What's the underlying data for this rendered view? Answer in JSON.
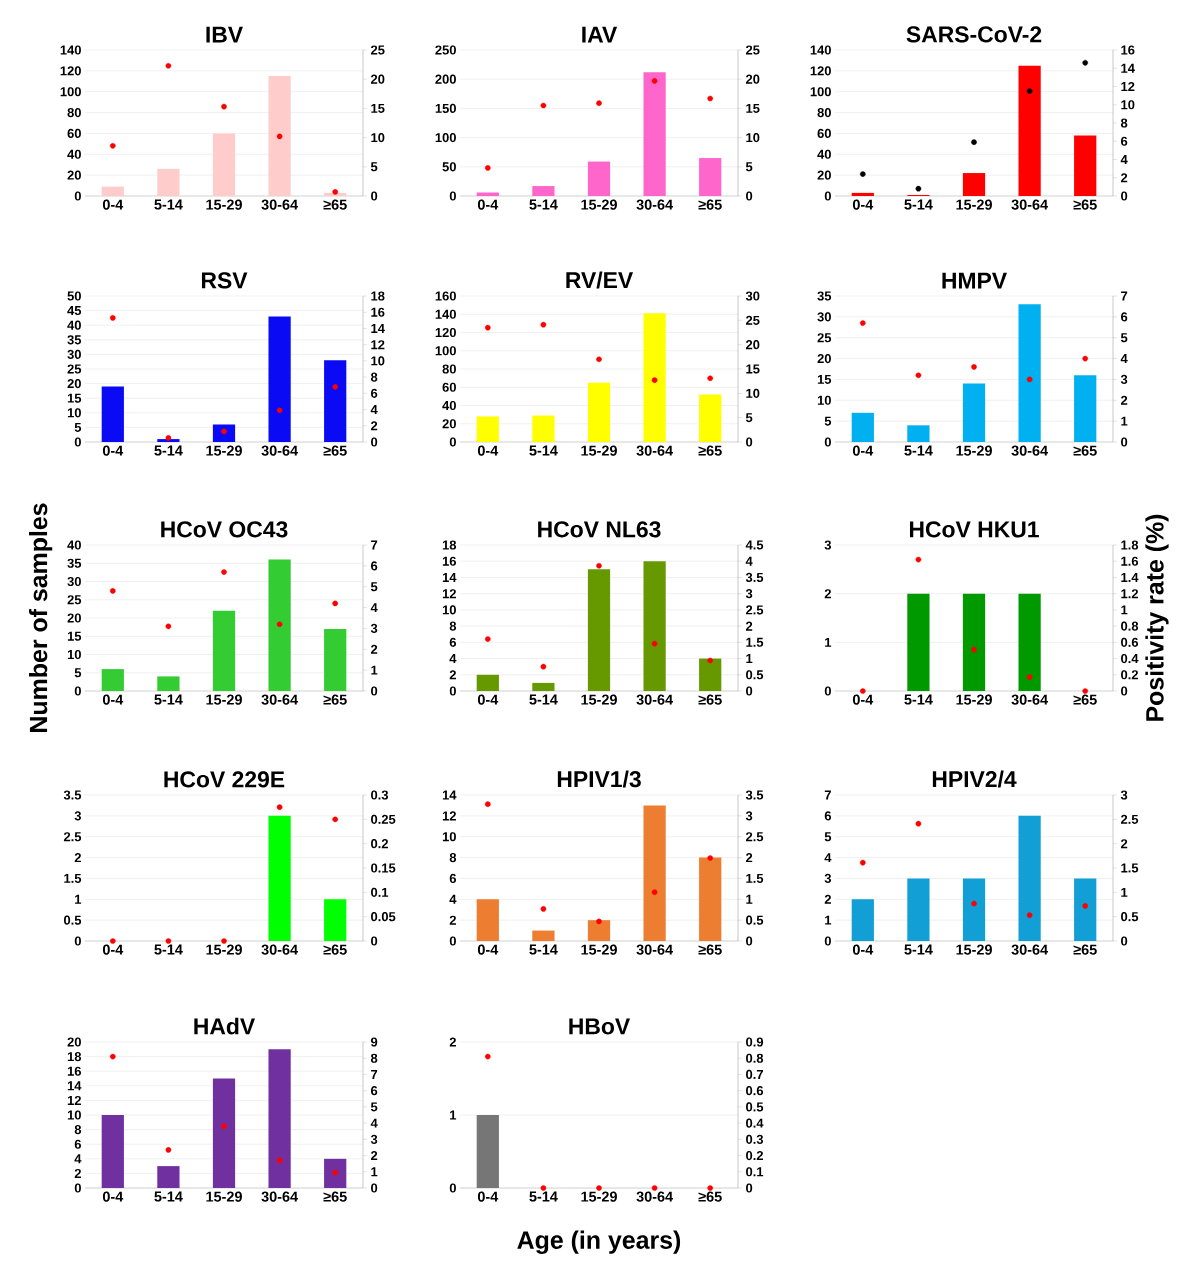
{
  "chart_data": [
    {
      "type": "bar",
      "title": "IBV",
      "categories": [
        "0-4",
        "5-14",
        "15-29",
        "30-64",
        "≥65"
      ],
      "ylim": [
        0,
        140
      ],
      "yticks": [
        0,
        20,
        40,
        60,
        80,
        100,
        120,
        140
      ],
      "y2lim": [
        0,
        25
      ],
      "y2ticks": [
        0,
        5,
        10,
        15,
        20,
        25
      ],
      "grid": "y",
      "series": [
        {
          "color": "#ffcccc",
          "values": [
            9,
            26,
            60,
            115,
            3
          ]
        },
        {
          "type": "scatter",
          "axis": "y2",
          "color": "#ff0000",
          "marker": "circle",
          "values": [
            8.6,
            22.3,
            15.3,
            10.2,
            0.7
          ]
        }
      ]
    },
    {
      "type": "bar",
      "title": "IAV",
      "categories": [
        "0-4",
        "5-14",
        "15-29",
        "30-64",
        "≥65"
      ],
      "ylim": [
        0,
        250
      ],
      "yticks": [
        0,
        50,
        100,
        150,
        200,
        250
      ],
      "y2lim": [
        0,
        25
      ],
      "y2ticks": [
        0,
        5,
        10,
        15,
        20,
        25
      ],
      "grid": "y",
      "series": [
        {
          "color": "#ff66cc",
          "values": [
            6,
            17,
            59,
            212,
            65
          ]
        },
        {
          "type": "scatter",
          "axis": "y2",
          "color": "#ff0000",
          "marker": "circle",
          "values": [
            4.8,
            15.5,
            15.9,
            19.7,
            16.7
          ]
        }
      ]
    },
    {
      "type": "bar",
      "title": "SARS-CoV-2",
      "categories": [
        "0-4",
        "5-14",
        "15-29",
        "30-64",
        "≥65"
      ],
      "ylim": [
        0,
        140
      ],
      "yticks": [
        0,
        20,
        40,
        60,
        80,
        100,
        120,
        140
      ],
      "y2lim": [
        0,
        16
      ],
      "y2ticks": [
        0,
        2,
        4,
        6,
        8,
        10,
        12,
        14,
        16
      ],
      "grid": "y",
      "series": [
        {
          "color": "#ff0000",
          "values": [
            3,
            1,
            22,
            125,
            58
          ]
        },
        {
          "type": "scatter",
          "axis": "y2",
          "color": "#000000",
          "marker": "circle",
          "values": [
            2.4,
            0.8,
            5.9,
            11.5,
            14.6
          ]
        }
      ]
    },
    {
      "type": "bar",
      "title": "RSV",
      "categories": [
        "0-4",
        "5-14",
        "15-29",
        "30-64",
        "≥65"
      ],
      "ylim": [
        0,
        50
      ],
      "yticks": [
        0,
        5,
        10,
        15,
        20,
        25,
        30,
        35,
        40,
        45,
        50
      ],
      "y2lim": [
        0,
        18
      ],
      "y2ticks": [
        0,
        2,
        4,
        6,
        8,
        10,
        12,
        14,
        16,
        18
      ],
      "grid": "y",
      "series": [
        {
          "color": "#0a0af5",
          "values": [
            19,
            1,
            6,
            43,
            28
          ]
        },
        {
          "type": "scatter",
          "axis": "y2",
          "color": "#ff0000",
          "marker": "circle",
          "values": [
            15.3,
            0.5,
            1.3,
            3.9,
            6.8
          ]
        }
      ]
    },
    {
      "type": "bar",
      "title": "RV/EV",
      "categories": [
        "0-4",
        "5-14",
        "15-29",
        "30-64",
        "≥65"
      ],
      "ylim": [
        0,
        160
      ],
      "yticks": [
        0,
        20,
        40,
        60,
        80,
        100,
        120,
        140,
        160
      ],
      "y2lim": [
        0,
        30
      ],
      "y2ticks": [
        0,
        5,
        10,
        15,
        20,
        25,
        30
      ],
      "grid": "y",
      "series": [
        {
          "color": "#ffff00",
          "values": [
            28,
            29,
            65,
            141,
            52
          ]
        },
        {
          "type": "scatter",
          "axis": "y2",
          "color": "#ff0000",
          "marker": "circle",
          "values": [
            23.5,
            24.1,
            17,
            12.7,
            13.1
          ]
        }
      ]
    },
    {
      "type": "bar",
      "title": "HMPV",
      "categories": [
        "0-4",
        "5-14",
        "15-29",
        "30-64",
        "≥65"
      ],
      "ylim": [
        0,
        35
      ],
      "yticks": [
        0,
        5,
        10,
        15,
        20,
        25,
        30,
        35
      ],
      "y2lim": [
        0,
        7
      ],
      "y2ticks": [
        0,
        1,
        2,
        3,
        4,
        5,
        6,
        7
      ],
      "grid": "y",
      "series": [
        {
          "color": "#00b0f0",
          "values": [
            7,
            4,
            14,
            33,
            16
          ]
        },
        {
          "type": "scatter",
          "axis": "y2",
          "color": "#ff0000",
          "marker": "circle",
          "values": [
            5.7,
            3.2,
            3.6,
            3.0,
            4.0
          ]
        }
      ]
    },
    {
      "type": "bar",
      "title": "HCoV OC43",
      "ylabel": "Number of samples",
      "categories": [
        "0-4",
        "5-14",
        "15-29",
        "30-64",
        "≥65"
      ],
      "ylim": [
        0,
        40
      ],
      "yticks": [
        0,
        5,
        10,
        15,
        20,
        25,
        30,
        35,
        40
      ],
      "y2lim": [
        0,
        7
      ],
      "y2ticks": [
        0,
        1,
        2,
        3,
        4,
        5,
        6,
        7
      ],
      "grid": "y",
      "series": [
        {
          "color": "#33cc33",
          "values": [
            6,
            4,
            22,
            36,
            17
          ]
        },
        {
          "type": "scatter",
          "axis": "y2",
          "color": "#ff0000",
          "marker": "circle",
          "values": [
            4.8,
            3.1,
            5.7,
            3.2,
            4.2
          ]
        }
      ]
    },
    {
      "type": "bar",
      "title": "HCoV NL63",
      "categories": [
        "0-4",
        "5-14",
        "15-29",
        "30-64",
        "≥65"
      ],
      "ylim": [
        0,
        18
      ],
      "yticks": [
        0,
        2,
        4,
        6,
        8,
        10,
        12,
        14,
        16,
        18
      ],
      "y2lim": [
        0,
        4.5
      ],
      "y2ticks": [
        0,
        0.5,
        1,
        1.5,
        2,
        2.5,
        3,
        3.5,
        4,
        4.5
      ],
      "grid": "y",
      "series": [
        {
          "color": "#669900",
          "values": [
            2,
            1,
            15,
            16,
            4
          ]
        },
        {
          "type": "scatter",
          "axis": "y2",
          "color": "#ff0000",
          "marker": "circle",
          "values": [
            1.6,
            0.75,
            3.86,
            1.46,
            0.94
          ]
        }
      ]
    },
    {
      "type": "bar",
      "title": "HCoV HKU1",
      "y2label": "Positivity rate (%)",
      "categories": [
        "0-4",
        "5-14",
        "15-29",
        "30-64",
        "≥65"
      ],
      "ylim": [
        0,
        3
      ],
      "yticks": [
        0,
        1,
        2,
        3
      ],
      "y2lim": [
        0,
        1.8
      ],
      "y2ticks": [
        0,
        0.2,
        0.4,
        0.6,
        0.8,
        1,
        1.2,
        1.4,
        1.6,
        1.8
      ],
      "grid": "y",
      "series": [
        {
          "color": "#009900",
          "values": [
            0,
            2,
            2,
            2,
            0
          ]
        },
        {
          "type": "scatter",
          "axis": "y2",
          "color": "#ff0000",
          "marker": "circle",
          "values": [
            0,
            1.62,
            0.51,
            0.17,
            0
          ]
        }
      ]
    },
    {
      "type": "bar",
      "title": "HCoV 229E",
      "categories": [
        "0-4",
        "5-14",
        "15-29",
        "30-64",
        "≥65"
      ],
      "ylim": [
        0,
        3.5
      ],
      "yticks": [
        0,
        0.5,
        1,
        1.5,
        2,
        2.5,
        3,
        3.5
      ],
      "y2lim": [
        0,
        0.3
      ],
      "y2ticks": [
        0,
        0.05,
        0.1,
        0.15,
        0.2,
        0.25,
        0.3
      ],
      "grid": "y",
      "series": [
        {
          "color": "#00ff00",
          "values": [
            0,
            0,
            0,
            3,
            1
          ]
        },
        {
          "type": "scatter",
          "axis": "y2",
          "color": "#ff0000",
          "marker": "circle",
          "values": [
            0,
            0,
            0,
            0.275,
            0.25
          ]
        }
      ]
    },
    {
      "type": "bar",
      "title": "HPIV1/3",
      "categories": [
        "0-4",
        "5-14",
        "15-29",
        "30-64",
        "≥65"
      ],
      "ylim": [
        0,
        14
      ],
      "yticks": [
        0,
        2,
        4,
        6,
        8,
        10,
        12,
        14
      ],
      "y2lim": [
        0,
        3.5
      ],
      "y2ticks": [
        0,
        0.5,
        1,
        1.5,
        2,
        2.5,
        3,
        3.5
      ],
      "grid": "y",
      "series": [
        {
          "color": "#ed7d31",
          "values": [
            4,
            1,
            2,
            13,
            8
          ]
        },
        {
          "type": "scatter",
          "axis": "y2",
          "color": "#ff0000",
          "marker": "circle",
          "values": [
            3.28,
            0.77,
            0.47,
            1.17,
            1.99
          ]
        }
      ]
    },
    {
      "type": "bar",
      "title": "HPIV2/4",
      "categories": [
        "0-4",
        "5-14",
        "15-29",
        "30-64",
        "≥65"
      ],
      "ylim": [
        0,
        7
      ],
      "yticks": [
        0,
        1,
        2,
        3,
        4,
        5,
        6,
        7
      ],
      "y2lim": [
        0,
        3
      ],
      "y2ticks": [
        0,
        0.5,
        1,
        1.5,
        2,
        2.5,
        3
      ],
      "grid": "y",
      "series": [
        {
          "color": "#129fd6",
          "values": [
            2,
            3,
            3,
            6,
            3
          ]
        },
        {
          "type": "scatter",
          "axis": "y2",
          "color": "#ff0000",
          "marker": "circle",
          "values": [
            1.61,
            2.41,
            0.77,
            0.53,
            0.72
          ]
        }
      ]
    },
    {
      "type": "bar",
      "title": "HAdV",
      "categories": [
        "0-4",
        "5-14",
        "15-29",
        "30-64",
        "≥65"
      ],
      "ylim": [
        0,
        20
      ],
      "yticks": [
        0,
        2,
        4,
        6,
        8,
        10,
        12,
        14,
        16,
        18,
        20
      ],
      "y2lim": [
        0,
        9
      ],
      "y2ticks": [
        0,
        1,
        2,
        3,
        4,
        5,
        6,
        7,
        8,
        9
      ],
      "grid": "y",
      "series": [
        {
          "color": "#7030a0",
          "values": [
            10,
            3,
            15,
            19,
            4
          ]
        },
        {
          "type": "scatter",
          "axis": "y2",
          "color": "#ff0000",
          "marker": "circle",
          "values": [
            8.1,
            2.35,
            3.8,
            1.7,
            0.95
          ]
        }
      ]
    },
    {
      "type": "bar",
      "title": "HBoV",
      "xlabel": "Age (in years)",
      "categories": [
        "0-4",
        "5-14",
        "15-29",
        "30-64",
        "≥65"
      ],
      "ylim": [
        0,
        2
      ],
      "yticks": [
        0,
        1,
        2
      ],
      "y2lim": [
        0,
        0.9
      ],
      "y2ticks": [
        0,
        0.1,
        0.2,
        0.3,
        0.4,
        0.5,
        0.6,
        0.7,
        0.8,
        0.9
      ],
      "grid": "y",
      "series": [
        {
          "color": "#767676",
          "values": [
            1,
            0,
            0,
            0,
            0
          ]
        },
        {
          "type": "scatter",
          "axis": "y2",
          "color": "#ff0000",
          "marker": "circle",
          "values": [
            0.81,
            0,
            0,
            0,
            0
          ]
        }
      ]
    }
  ]
}
